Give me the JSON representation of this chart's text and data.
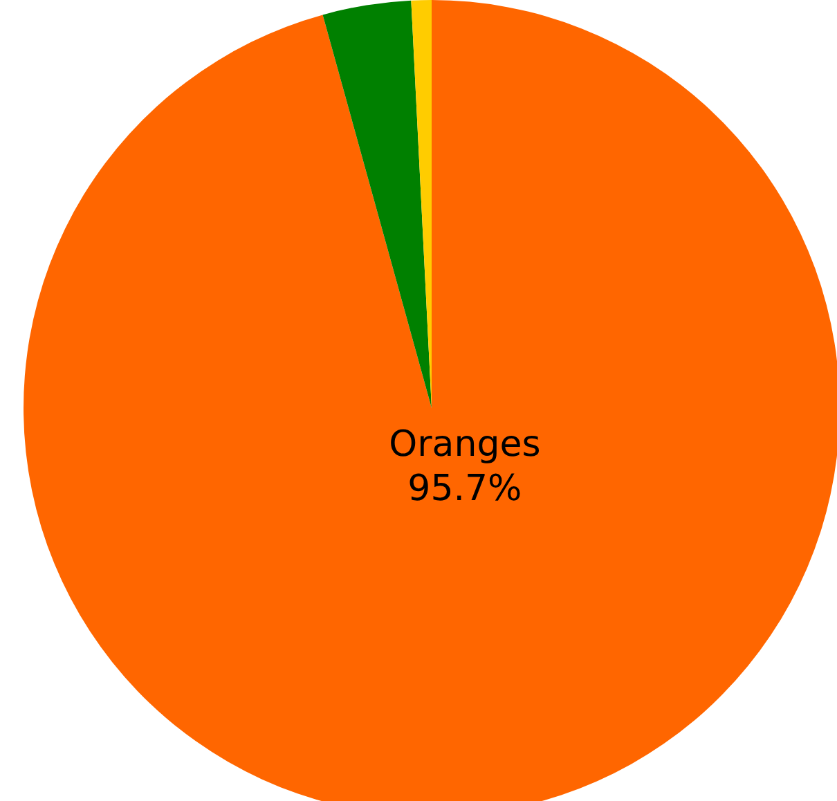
{
  "chart_data": {
    "type": "pie",
    "categories": [
      "Oranges",
      null,
      null
    ],
    "values": [
      95.7,
      3.5,
      0.8
    ],
    "colors": [
      "#ff6600",
      "#008000",
      "#ffcc00"
    ],
    "value_labels": [
      "95.7%",
      null,
      null
    ],
    "legend": false
  }
}
